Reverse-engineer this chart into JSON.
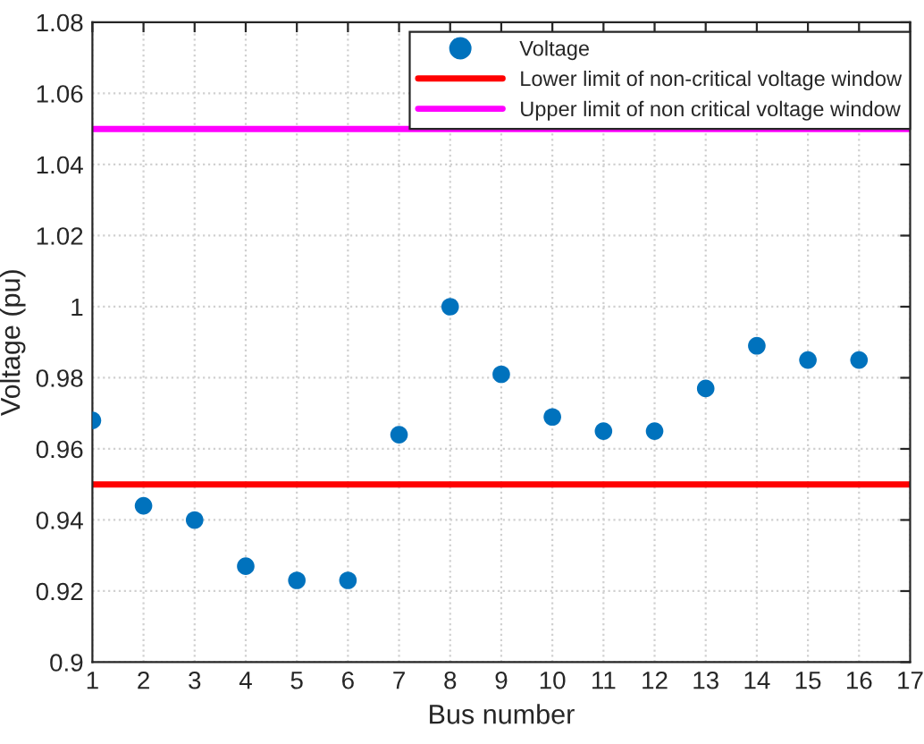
{
  "chart_data": {
    "type": "scatter",
    "xlabel": "Bus number",
    "ylabel": "Voltage (pu)",
    "x": [
      1,
      2,
      3,
      4,
      5,
      6,
      7,
      8,
      9,
      10,
      11,
      12,
      13,
      14,
      15,
      16
    ],
    "series": [
      {
        "name": "Voltage",
        "color": "#0072bd",
        "values": [
          0.968,
          0.944,
          0.94,
          0.927,
          0.923,
          0.923,
          0.964,
          1.0,
          0.981,
          0.969,
          0.965,
          0.965,
          0.977,
          0.989,
          0.985,
          0.985
        ]
      }
    ],
    "ref_lines": [
      {
        "axis": "y",
        "value": 0.95,
        "label": "Lower limit of non-critical voltage window",
        "color": "#ff0000"
      },
      {
        "axis": "y",
        "value": 1.05,
        "label": "Upper limit of non critical voltage window",
        "color": "#ff00ff"
      }
    ],
    "marker": "circle",
    "xlim": [
      1,
      17
    ],
    "xticks": [
      1,
      2,
      3,
      4,
      5,
      6,
      7,
      8,
      9,
      10,
      11,
      12,
      13,
      14,
      15,
      16,
      17
    ],
    "ylim": [
      0.9,
      1.08
    ],
    "yticks": [
      0.9,
      0.92,
      0.94,
      0.96,
      0.98,
      1,
      1.02,
      1.04,
      1.06,
      1.08
    ],
    "grid": true,
    "legend": "top right"
  }
}
